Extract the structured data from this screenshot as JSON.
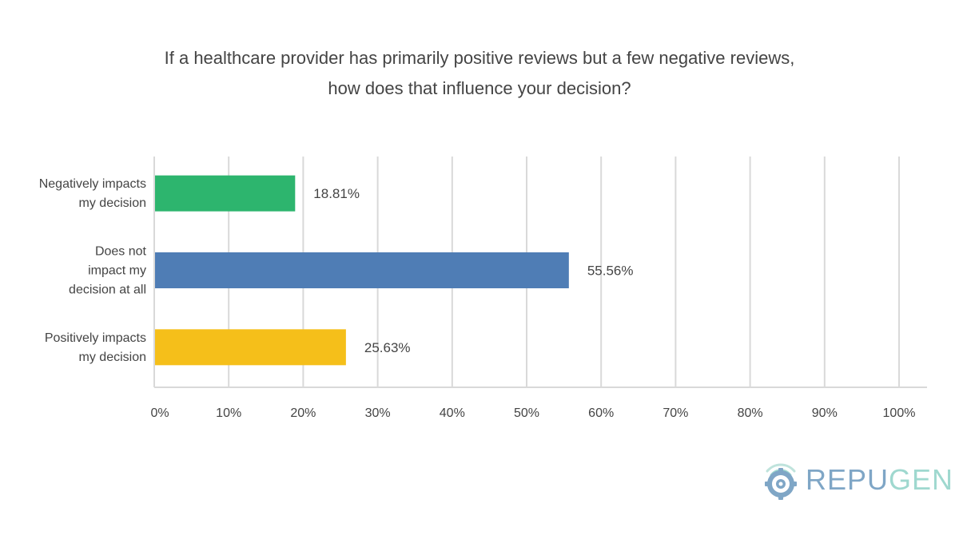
{
  "chart_data": {
    "type": "bar",
    "orientation": "horizontal",
    "title_lines": [
      "If a healthcare provider has primarily positive reviews but a few negative reviews,",
      "how does that influence your decision?"
    ],
    "categories": [
      [
        "Negatively impacts",
        "my decision"
      ],
      [
        "Does not",
        "impact my",
        "decision at all"
      ],
      [
        "Positively impacts",
        "my decision"
      ]
    ],
    "values": [
      18.81,
      55.56,
      25.63
    ],
    "value_labels": [
      "18.81%",
      "55.56%",
      "25.63%"
    ],
    "colors": [
      "#2db56e",
      "#4f7db5",
      "#f5bf1a"
    ],
    "xlim": [
      0,
      100
    ],
    "x_ticks": [
      0,
      10,
      20,
      30,
      40,
      50,
      60,
      70,
      80,
      90,
      100
    ],
    "x_tick_labels": [
      "0%",
      "10%",
      "20%",
      "30%",
      "40%",
      "50%",
      "60%",
      "70%",
      "80%",
      "90%",
      "100%"
    ],
    "grid": true,
    "grid_color": "#d9d9d9"
  },
  "logo": {
    "text_part1": "REPU",
    "text_part2": "GEN",
    "color1": "#7fa6c6",
    "color2": "#9fd8cf"
  }
}
